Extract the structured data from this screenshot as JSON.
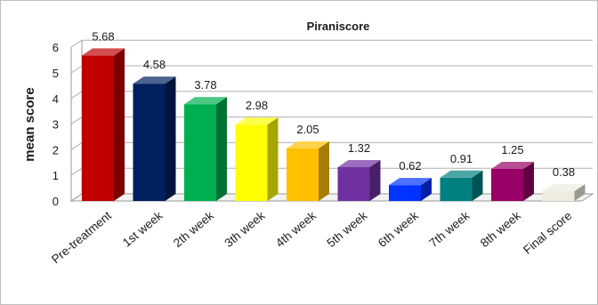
{
  "chart_data": {
    "type": "bar",
    "title": "Piraniscore",
    "xlabel": "",
    "ylabel": "mean score",
    "ylim": [
      0,
      6
    ],
    "yticks": [
      0,
      1,
      2,
      3,
      4,
      5,
      6
    ],
    "grid": true,
    "legend": "none",
    "style": "3d-columns",
    "categories": [
      "Pre-treatment",
      "1st week",
      "2th week",
      "3th week",
      "4th week",
      "5th week",
      "6th week",
      "7th week",
      "8th week",
      "Final score"
    ],
    "values": [
      5.68,
      4.58,
      3.78,
      2.98,
      2.05,
      1.32,
      0.62,
      0.91,
      1.25,
      0.38
    ],
    "data_labels": [
      "5.68",
      "4.58",
      "3.78",
      "2.98",
      "2.05",
      "1.32",
      "0.62",
      "0.91",
      "1.25",
      "0.38"
    ],
    "colors": [
      "#c00000",
      "#002060",
      "#00b050",
      "#ffff00",
      "#ffc000",
      "#7030a0",
      "#0033ff",
      "#008080",
      "#990066",
      "#eeece1"
    ]
  }
}
